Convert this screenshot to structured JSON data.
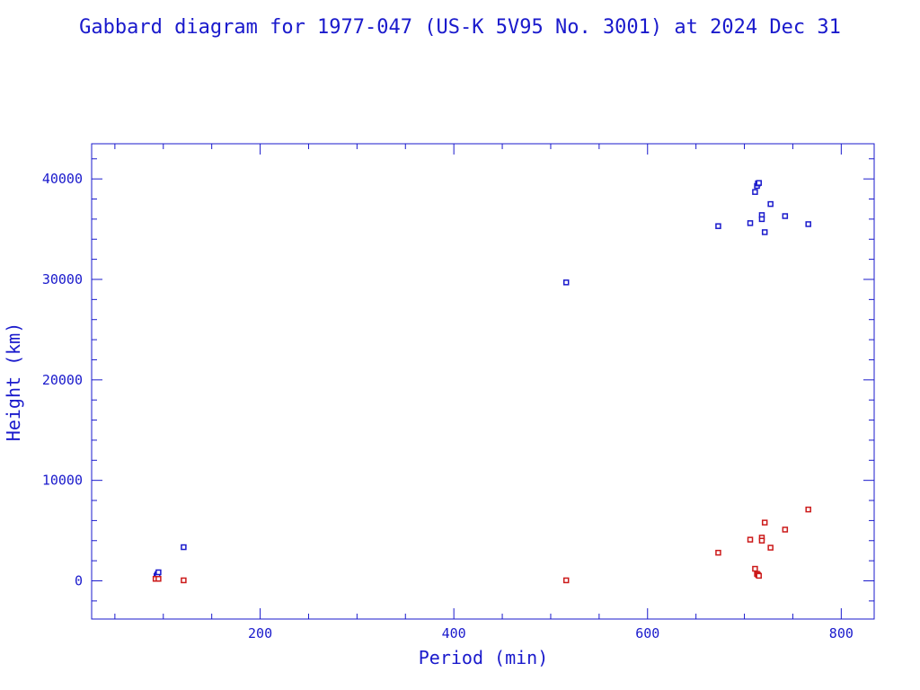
{
  "chart_data": {
    "type": "scatter",
    "title": "Gabbard diagram for 1977-047 (US-K 5V95 No. 3001) at 2024 Dec 31",
    "xlabel": "Period (min)",
    "ylabel": "Height (km)",
    "xlim": [
      26,
      834
    ],
    "ylim": [
      -3800,
      43500
    ],
    "xticks": [
      200,
      400,
      600,
      800
    ],
    "yticks": [
      0,
      10000,
      20000,
      30000,
      40000
    ],
    "legend": "none",
    "grid": false,
    "colors": {
      "axes": "#1a1acc",
      "apogee": "#1a1acc",
      "perigee": "#cc1a1a"
    },
    "series": [
      {
        "marker_color": "#1a1acc",
        "points": [
          [
            93,
            500
          ],
          [
            94,
            650
          ],
          [
            95,
            850
          ],
          [
            121,
            3350
          ],
          [
            516,
            29700
          ],
          [
            673,
            35300
          ],
          [
            706,
            35600
          ],
          [
            711,
            38700
          ],
          [
            713,
            39300
          ],
          [
            714,
            39550
          ],
          [
            715,
            39600
          ],
          [
            718,
            36400
          ],
          [
            718,
            36000
          ],
          [
            721,
            34700
          ],
          [
            727,
            37500
          ],
          [
            742,
            36300
          ],
          [
            766,
            35500
          ]
        ]
      },
      {
        "marker_color": "#cc1a1a",
        "points": [
          [
            92,
            200
          ],
          [
            95,
            200
          ],
          [
            121,
            50
          ],
          [
            516,
            50
          ],
          [
            673,
            2800
          ],
          [
            706,
            4100
          ],
          [
            711,
            1200
          ],
          [
            713,
            700
          ],
          [
            714,
            600
          ],
          [
            715,
            500
          ],
          [
            718,
            4300
          ],
          [
            718,
            4000
          ],
          [
            721,
            5800
          ],
          [
            727,
            3300
          ],
          [
            742,
            5100
          ],
          [
            766,
            7100
          ]
        ]
      }
    ]
  }
}
